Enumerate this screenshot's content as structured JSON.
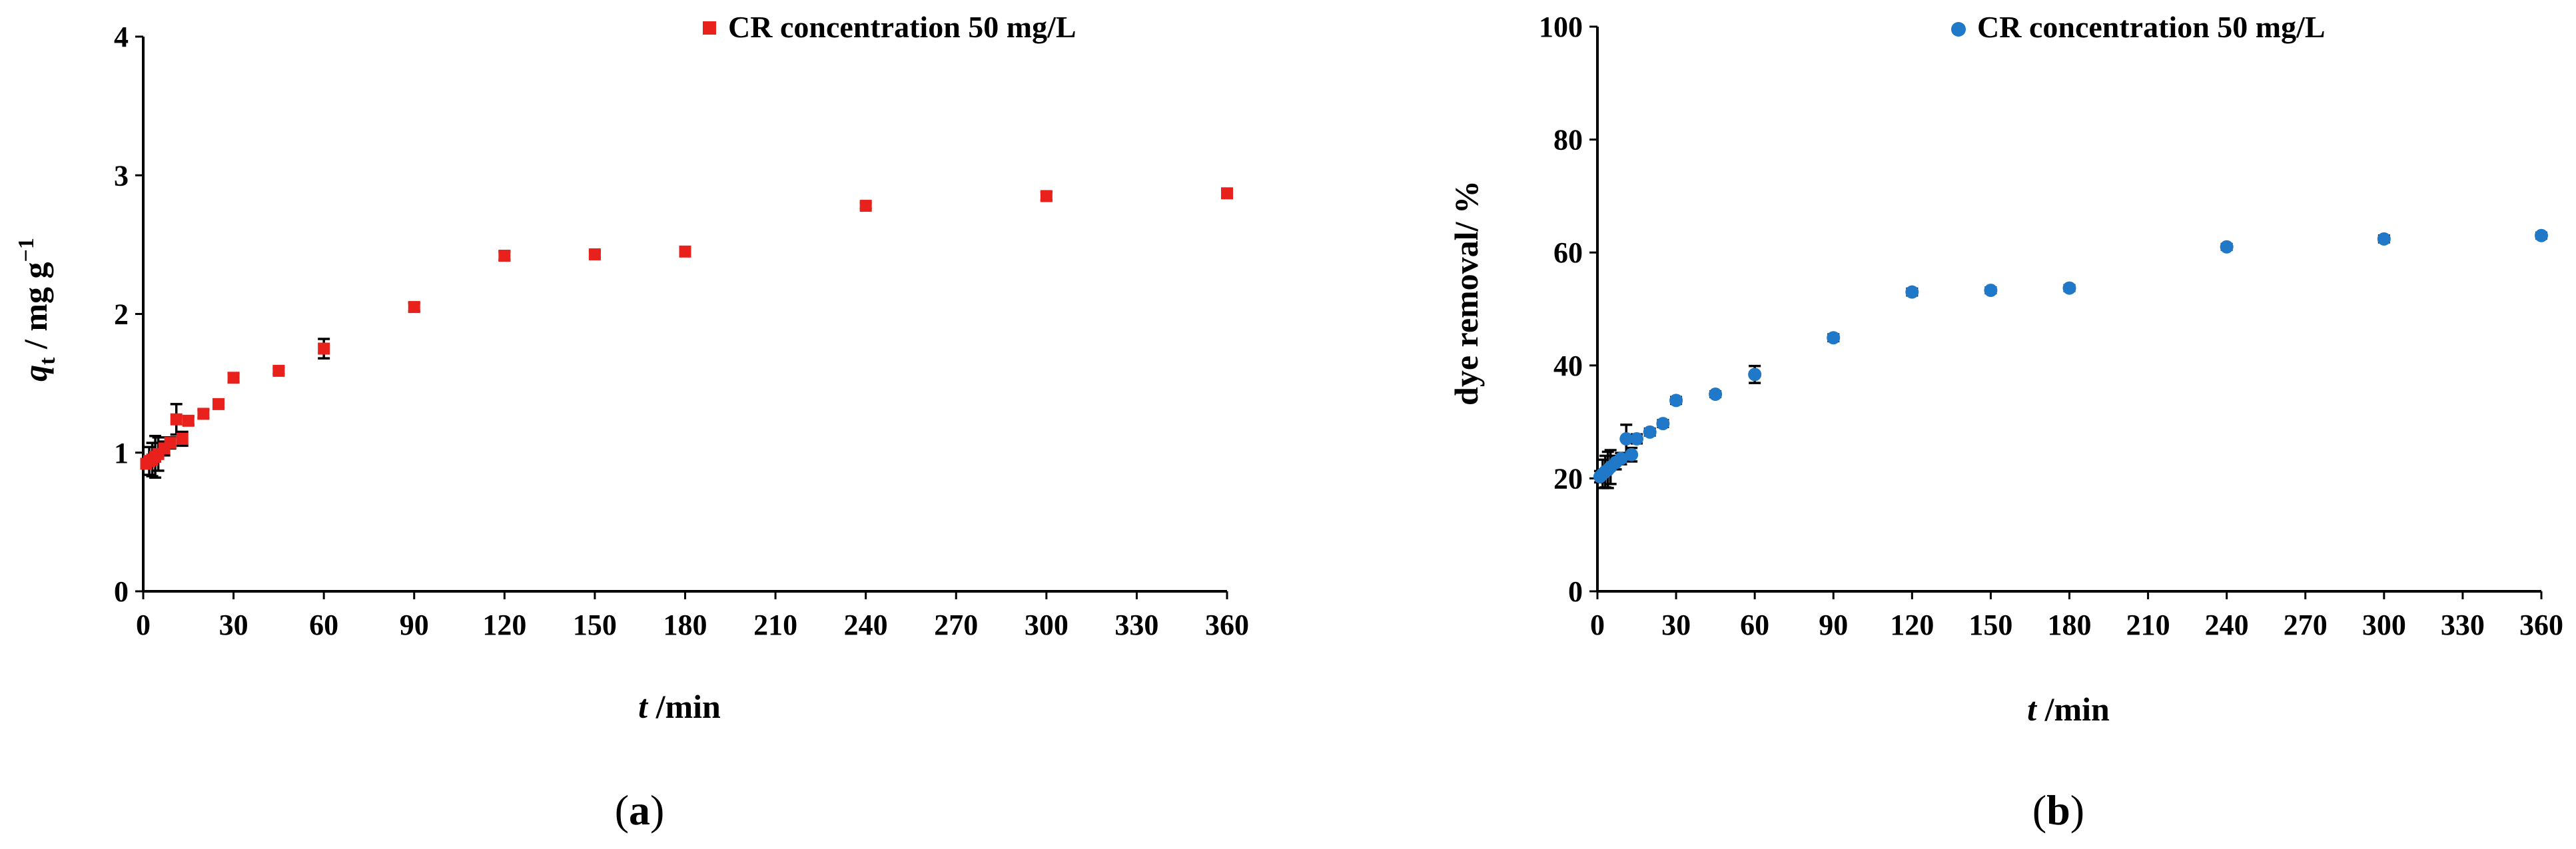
{
  "chart_data": [
    {
      "type": "scatter",
      "panel_label": "a",
      "xlabel": "t",
      "xlabel_unit": " /min",
      "ylabel_q": "q",
      "ylabel_sub": "t",
      "ylabel_rest": " / mg g",
      "ylabel_sup": "−1",
      "xlim": [
        0,
        360
      ],
      "ylim": [
        0,
        4
      ],
      "x_ticks": [
        0,
        30,
        60,
        90,
        120,
        150,
        180,
        210,
        240,
        270,
        300,
        330,
        360
      ],
      "y_ticks": [
        0,
        1,
        2,
        3,
        4
      ],
      "legend_placement": "top-right",
      "series": [
        {
          "name": "CR concentration 50 mg/L",
          "color": "#e8211d",
          "marker": "square",
          "points": [
            {
              "x": 1,
              "y": 0.92,
              "err": 0.03
            },
            {
              "x": 2,
              "y": 0.94,
              "err": 0.1
            },
            {
              "x": 3,
              "y": 0.95,
              "err": 0.12
            },
            {
              "x": 4,
              "y": 0.97,
              "err": 0.15
            },
            {
              "x": 5,
              "y": 0.99,
              "err": 0.12
            },
            {
              "x": 7,
              "y": 1.03,
              "err": 0.05
            },
            {
              "x": 9,
              "y": 1.07,
              "err": 0.04
            },
            {
              "x": 11,
              "y": 1.24,
              "err": 0.11
            },
            {
              "x": 13,
              "y": 1.1,
              "err": 0.05
            },
            {
              "x": 15,
              "y": 1.23,
              "err": 0.03
            },
            {
              "x": 20,
              "y": 1.28,
              "err": 0.03
            },
            {
              "x": 25,
              "y": 1.35,
              "err": 0.03
            },
            {
              "x": 30,
              "y": 1.54,
              "err": 0.03
            },
            {
              "x": 45,
              "y": 1.59,
              "err": 0.02
            },
            {
              "x": 60,
              "y": 1.75,
              "err": 0.07
            },
            {
              "x": 90,
              "y": 2.05,
              "err": 0.03
            },
            {
              "x": 120,
              "y": 2.42,
              "err": 0.03
            },
            {
              "x": 150,
              "y": 2.43,
              "err": 0.02
            },
            {
              "x": 180,
              "y": 2.45,
              "err": 0.02
            },
            {
              "x": 240,
              "y": 2.78,
              "err": 0.02
            },
            {
              "x": 300,
              "y": 2.85,
              "err": 0.03
            },
            {
              "x": 360,
              "y": 2.87,
              "err": 0.02
            }
          ]
        }
      ]
    },
    {
      "type": "scatter",
      "panel_label": "b",
      "xlabel": "t",
      "xlabel_unit": " /min",
      "ylabel": "dye removal/ %",
      "xlim": [
        0,
        360
      ],
      "ylim": [
        0,
        100
      ],
      "x_ticks": [
        0,
        30,
        60,
        90,
        120,
        150,
        180,
        210,
        240,
        270,
        300,
        330,
        360
      ],
      "y_ticks": [
        0,
        20,
        40,
        60,
        80,
        100
      ],
      "legend_placement": "top-right",
      "series": [
        {
          "name": "CR concentration 50 mg/L",
          "color": "#1f78c8",
          "marker": "circle",
          "points": [
            {
              "x": 1,
              "y": 20.3,
              "err": 1
            },
            {
              "x": 2,
              "y": 20.8,
              "err": 2.5
            },
            {
              "x": 3,
              "y": 21.2,
              "err": 2.8
            },
            {
              "x": 4,
              "y": 21.5,
              "err": 3.2
            },
            {
              "x": 5,
              "y": 22.0,
              "err": 3
            },
            {
              "x": 7,
              "y": 22.8,
              "err": 1.2
            },
            {
              "x": 9,
              "y": 23.5,
              "err": 1
            },
            {
              "x": 11,
              "y": 27.0,
              "err": 2.5
            },
            {
              "x": 13,
              "y": 24.2,
              "err": 1.2
            },
            {
              "x": 15,
              "y": 27.0,
              "err": 0.8
            },
            {
              "x": 20,
              "y": 28.2,
              "err": 0.6
            },
            {
              "x": 25,
              "y": 29.7,
              "err": 0.6
            },
            {
              "x": 30,
              "y": 33.8,
              "err": 0.6
            },
            {
              "x": 45,
              "y": 34.9,
              "err": 0.5
            },
            {
              "x": 60,
              "y": 38.4,
              "err": 1.5
            },
            {
              "x": 90,
              "y": 44.9,
              "err": 0.6
            },
            {
              "x": 120,
              "y": 53.0,
              "err": 0.6
            },
            {
              "x": 150,
              "y": 53.3,
              "err": 0.5
            },
            {
              "x": 180,
              "y": 53.7,
              "err": 0.5
            },
            {
              "x": 240,
              "y": 61.0,
              "err": 0.5
            },
            {
              "x": 300,
              "y": 62.4,
              "err": 0.6
            },
            {
              "x": 360,
              "y": 63.0,
              "err": 0.5
            }
          ]
        }
      ]
    }
  ]
}
